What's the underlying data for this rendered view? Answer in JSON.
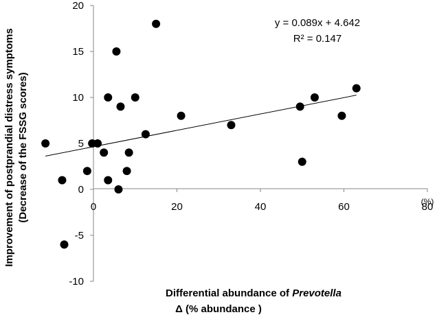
{
  "chart_data": {
    "type": "scatter",
    "title": "",
    "xlabel_prefix": "Differential abundance of ",
    "xlabel_italic": "Prevotella",
    "xlabel_line2": "Δ (% abundance )",
    "ylabel_line1": "Improvement of postprandial distress symptoms",
    "ylabel_line2": "(Decrease of the FSSG scores)",
    "x_unit": "(%)",
    "xlim": [
      -10,
      80
    ],
    "ylim": [
      -10,
      20
    ],
    "x_ticks": [
      0,
      20,
      40,
      60,
      80
    ],
    "y_ticks": [
      -10,
      -5,
      0,
      5,
      10,
      15,
      20
    ],
    "x_tick_labels": [
      "0",
      "20",
      "40",
      "60",
      "80"
    ],
    "y_tick_labels": [
      "-10",
      "-5",
      "0",
      "5",
      "10",
      "15",
      "20"
    ],
    "grid": false,
    "points": [
      {
        "x": -11.5,
        "y": 5
      },
      {
        "x": -7.5,
        "y": 1
      },
      {
        "x": -7,
        "y": -6
      },
      {
        "x": -1.5,
        "y": 2
      },
      {
        "x": -0.3,
        "y": 5
      },
      {
        "x": 1,
        "y": 5
      },
      {
        "x": 2.5,
        "y": 4
      },
      {
        "x": 3.5,
        "y": 10
      },
      {
        "x": 3.5,
        "y": 1
      },
      {
        "x": 5.5,
        "y": 15
      },
      {
        "x": 6,
        "y": 0
      },
      {
        "x": 6.5,
        "y": 9
      },
      {
        "x": 8,
        "y": 2
      },
      {
        "x": 8.5,
        "y": 4
      },
      {
        "x": 10,
        "y": 10
      },
      {
        "x": 12.5,
        "y": 6
      },
      {
        "x": 15,
        "y": 18
      },
      {
        "x": 21,
        "y": 8
      },
      {
        "x": 33,
        "y": 7
      },
      {
        "x": 49.5,
        "y": 9
      },
      {
        "x": 50,
        "y": 3
      },
      {
        "x": 53,
        "y": 10
      },
      {
        "x": 59.5,
        "y": 8
      },
      {
        "x": 63,
        "y": 11
      }
    ],
    "trendline": {
      "slope": 0.089,
      "intercept": 4.642,
      "x_range": [
        -11.5,
        63
      ]
    },
    "equation": "y = 0.089x + 4.642",
    "r_squared": "R² = 0.147"
  }
}
